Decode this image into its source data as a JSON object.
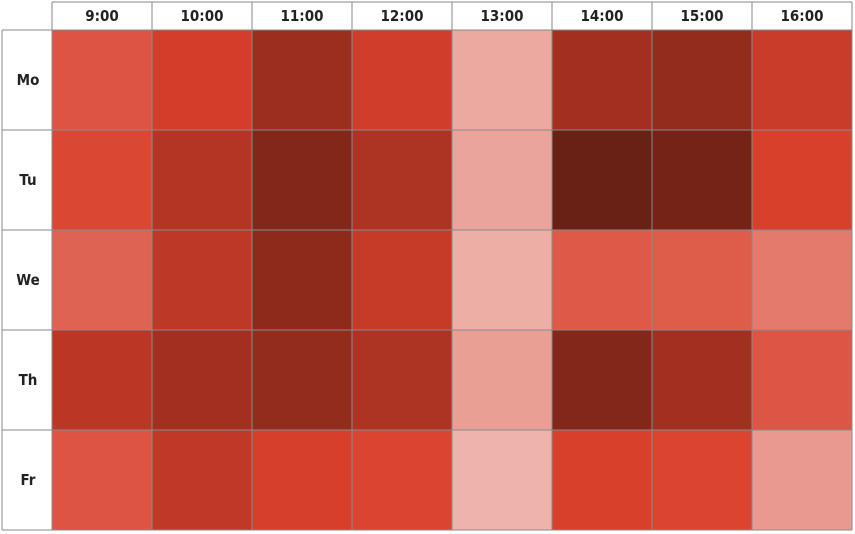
{
  "chart_data": {
    "type": "heatmap",
    "title": "",
    "xlabel": "",
    "ylabel": "",
    "x_categories": [
      "9:00",
      "10:00",
      "11:00",
      "12:00",
      "13:00",
      "14:00",
      "15:00",
      "16:00"
    ],
    "y_categories": [
      "Mo",
      "Tu",
      "We",
      "Th",
      "Fr"
    ],
    "color_range": {
      "low": "#f4d6d2",
      "mid": "#d9402c",
      "high": "#5c1c12"
    },
    "values": [
      [
        52,
        62,
        80,
        63,
        18,
        78,
        82,
        65
      ],
      [
        57,
        72,
        88,
        74,
        20,
        96,
        92,
        60
      ],
      [
        46,
        69,
        84,
        66,
        16,
        50,
        49,
        37
      ],
      [
        70,
        78,
        82,
        74,
        22,
        88,
        78,
        51
      ],
      [
        52,
        68,
        61,
        58,
        14,
        60,
        58,
        24
      ]
    ],
    "grid": true,
    "legend": "none"
  }
}
